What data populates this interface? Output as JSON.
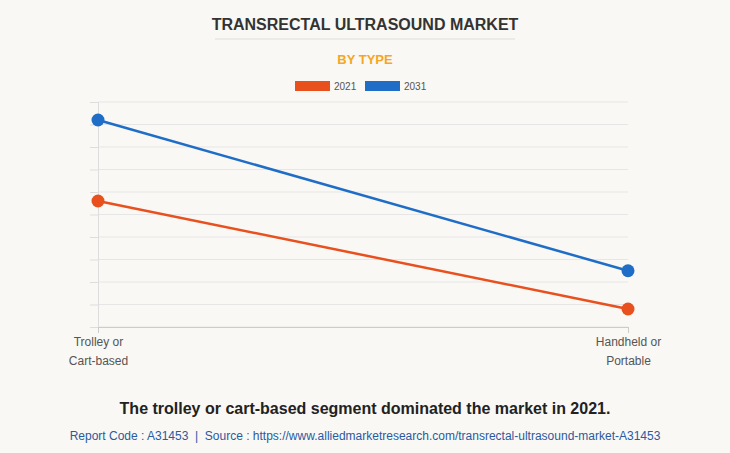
{
  "chart_data": {
    "type": "line",
    "title": "TRANSRECTAL ULTRASOUND MARKET",
    "subtitle": "BY TYPE",
    "categories": [
      "Trolley or Cart-based",
      "Handheld or Portable"
    ],
    "series": [
      {
        "name": "2021",
        "color": "#e8501e",
        "values": [
          5.6,
          0.8
        ],
        "marker": "circle"
      },
      {
        "name": "2031",
        "color": "#1f6dc6",
        "values": [
          9.2,
          2.5
        ],
        "marker": "circle"
      }
    ],
    "ylim": [
      0,
      10
    ],
    "yticks": [
      0,
      1,
      2,
      3,
      4,
      5,
      6,
      7,
      8,
      9,
      10
    ],
    "grid": true,
    "legend": "top",
    "tick_labels": "x",
    "annotations": [
      "The trolley or cart-based segment dominated the market in 2021.",
      "Report Code : A31453  |  Source : https://www.alliedmarketresearch.com/transrectal-ultrasound-market-A31453"
    ]
  }
}
